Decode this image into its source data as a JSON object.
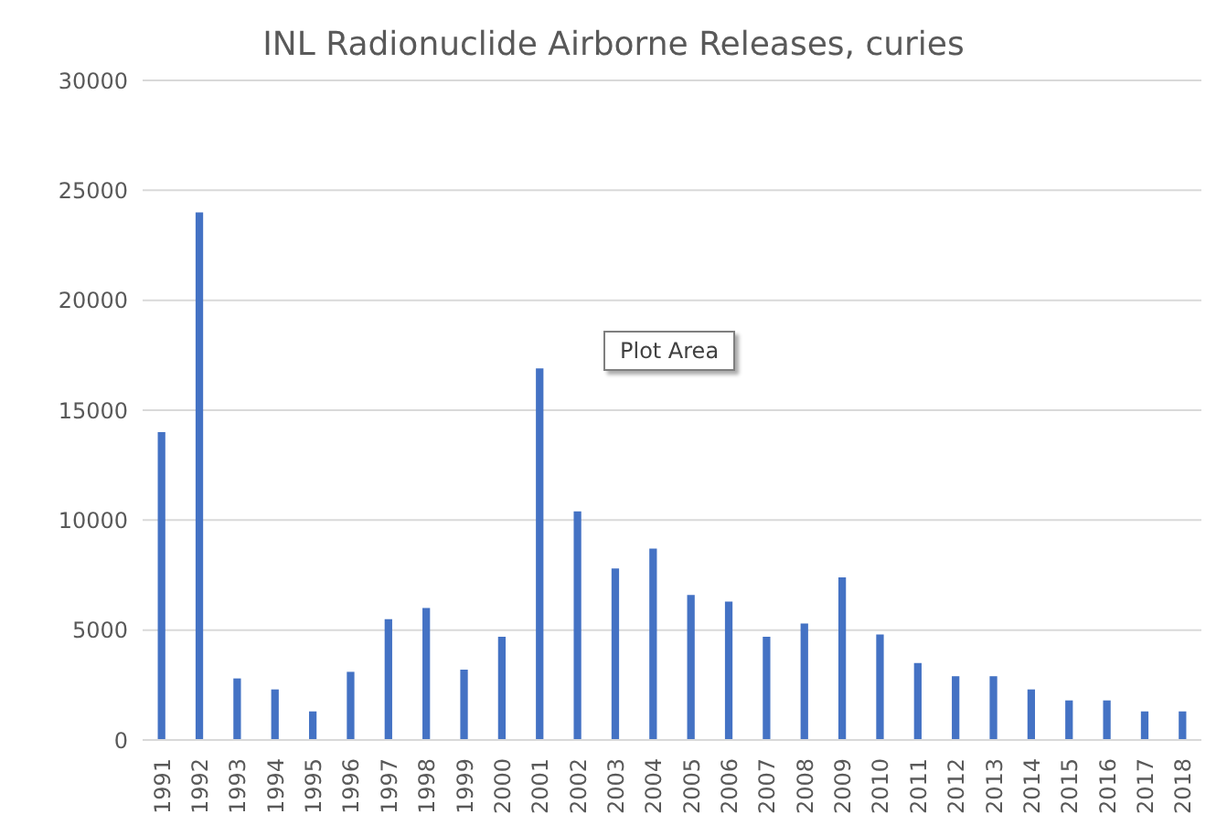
{
  "chart_data": {
    "type": "bar",
    "title": "INL Radionuclide Airborne Releases, curies",
    "categories": [
      "1991",
      "1992",
      "1993",
      "1994",
      "1995",
      "1996",
      "1997",
      "1998",
      "1999",
      "2000",
      "2001",
      "2002",
      "2003",
      "2004",
      "2005",
      "2006",
      "2007",
      "2008",
      "2009",
      "2010",
      "2011",
      "2012",
      "2013",
      "2014",
      "2015",
      "2016",
      "2017",
      "2018"
    ],
    "values": [
      14000,
      24000,
      2800,
      2300,
      1300,
      3100,
      5500,
      6000,
      3200,
      4700,
      16900,
      10400,
      7800,
      8700,
      6600,
      6300,
      4700,
      5300,
      7400,
      4800,
      3500,
      2900,
      2900,
      2300,
      1800,
      1800,
      1300,
      1300
    ],
    "color": "#4472c4",
    "ylim": [
      0,
      30000
    ],
    "yticks": [
      0,
      5000,
      10000,
      15000,
      20000,
      25000,
      30000
    ],
    "grid": "y",
    "legend": false,
    "annotations": [
      "Plot Area"
    ]
  }
}
